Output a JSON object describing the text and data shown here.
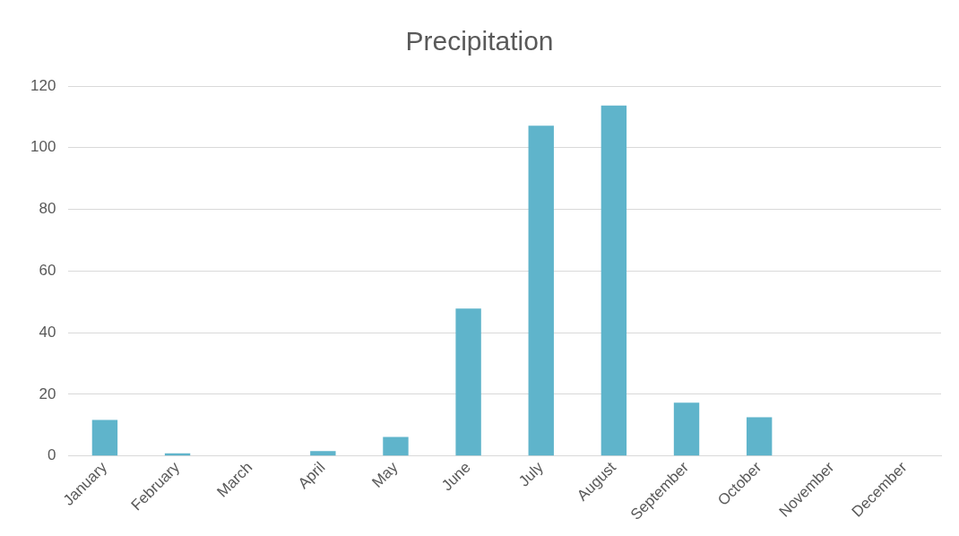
{
  "chart_data": {
    "type": "bar",
    "title": "Precipitation",
    "categories": [
      "January",
      "February",
      "March",
      "April",
      "May",
      "June",
      "July",
      "August",
      "September",
      "October",
      "November",
      "December"
    ],
    "values": [
      11.7,
      0.9,
      0,
      1.6,
      6.2,
      47.8,
      107.1,
      113.7,
      17.3,
      12.6,
      0,
      0
    ],
    "color": "#5fb4cb",
    "ylim": [
      0,
      120
    ],
    "yticks": [
      0,
      20,
      40,
      60,
      80,
      100,
      120
    ],
    "grid": "y",
    "legend": false
  }
}
